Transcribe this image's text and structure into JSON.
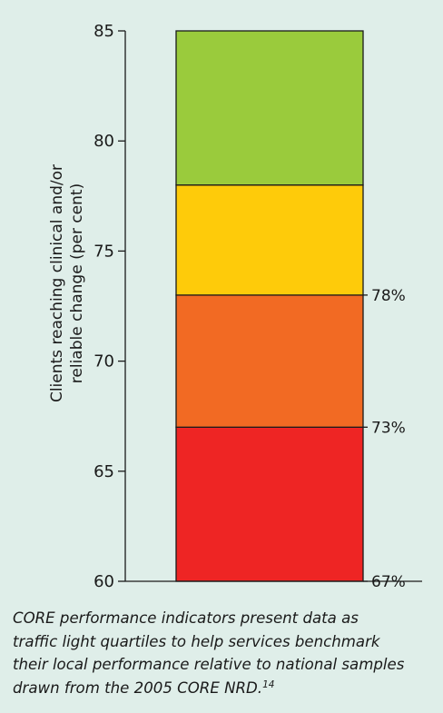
{
  "chart_data": {
    "type": "bar",
    "subtype": "stacked-single-bar",
    "ylabel": [
      "Clients reaching clinical and/or",
      "reliable change (per cent)"
    ],
    "ylim": [
      60,
      85
    ],
    "yticks": [
      60,
      65,
      70,
      75,
      80,
      85
    ],
    "bands": [
      {
        "from": 60,
        "to": 67,
        "color": "#ee2524",
        "label": "67%"
      },
      {
        "from": 67,
        "to": 73,
        "color": "#f26a23",
        "label": "73%"
      },
      {
        "from": 73,
        "to": 78,
        "color": "#fecb0a",
        "label": "78%"
      },
      {
        "from": 78,
        "to": 85,
        "color": "#9acb3c",
        "label": ""
      }
    ],
    "grid": false,
    "legend": "none"
  },
  "caption": {
    "lines": [
      "CORE performance indicators present data as",
      "traffic light quartiles to help services benchmark",
      "their local performance relative to national samples",
      "drawn from the 2005 CORE NRD."
    ],
    "footnote": "14"
  },
  "colors": {
    "background": "#dfeee9",
    "axis": "#1a1a1a"
  }
}
